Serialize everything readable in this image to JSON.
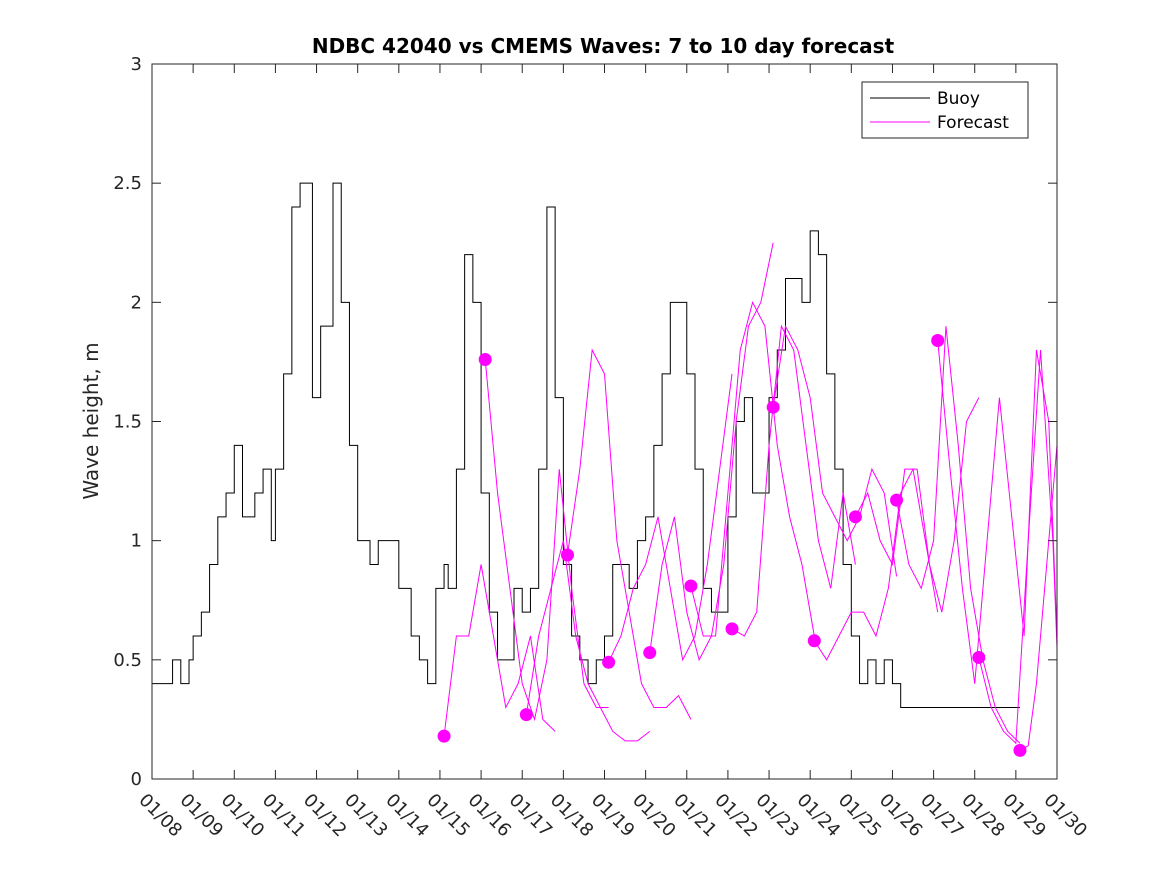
{
  "chart_data": {
    "type": "line",
    "title": "NDBC 42040 vs CMEMS Waves: 7 to 10 day forecast",
    "xlabel": "",
    "ylabel": "Wave height, m",
    "xlim": [
      0,
      22
    ],
    "ylim": [
      0,
      3
    ],
    "x_tick_labels": [
      "01/08",
      "01/09",
      "01/10",
      "01/11",
      "01/12",
      "01/13",
      "01/14",
      "01/15",
      "01/16",
      "01/17",
      "01/18",
      "01/19",
      "01/20",
      "01/21",
      "01/22",
      "01/23",
      "01/24",
      "01/25",
      "01/26",
      "01/27",
      "01/28",
      "01/29",
      "01/30"
    ],
    "y_tick_labels": [
      "0",
      "0.5",
      "1",
      "1.5",
      "2",
      "2.5",
      "3"
    ],
    "y_ticks": [
      0,
      0.5,
      1,
      1.5,
      2,
      2.5,
      3
    ],
    "grid": false,
    "legend_position": "top-right",
    "colors": {
      "buoy": "#000000",
      "forecast": "#ff00ff"
    },
    "series": [
      {
        "name": "Buoy",
        "x": [
          0,
          0.3,
          0.5,
          0.7,
          0.9,
          1.0,
          1.2,
          1.4,
          1.6,
          1.8,
          2.0,
          2.2,
          2.5,
          2.7,
          2.9,
          3.0,
          3.2,
          3.4,
          3.6,
          3.9,
          4.1,
          4.4,
          4.6,
          4.8,
          5.0,
          5.3,
          5.5,
          5.8,
          6.0,
          6.3,
          6.5,
          6.7,
          6.9,
          7.1,
          7.2,
          7.4,
          7.6,
          7.8,
          8.0,
          8.2,
          8.4,
          8.6,
          8.8,
          9.0,
          9.2,
          9.4,
          9.6,
          9.8,
          10.0,
          10.2,
          10.4,
          10.6,
          10.8,
          11.0,
          11.2,
          11.4,
          11.6,
          11.8,
          12.0,
          12.2,
          12.4,
          12.6,
          12.8,
          13.0,
          13.2,
          13.4,
          13.6,
          13.8,
          14.0,
          14.2,
          14.4,
          14.6,
          14.8,
          15.0,
          15.2,
          15.4,
          15.6,
          15.8,
          16.0,
          16.2,
          16.4,
          16.6,
          16.8,
          17.0,
          17.2,
          17.4,
          17.6,
          17.8,
          18.0,
          18.2,
          18.4,
          18.6,
          18.8,
          19.0,
          19.2,
          19.4,
          19.6,
          19.8,
          20.0,
          20.2,
          20.4,
          20.6,
          20.8,
          21.0,
          21.1
        ],
        "values": [
          0.4,
          0.4,
          0.5,
          0.4,
          0.5,
          0.6,
          0.7,
          0.9,
          1.1,
          1.2,
          1.4,
          1.1,
          1.2,
          1.3,
          1.0,
          1.3,
          1.7,
          2.4,
          2.5,
          1.6,
          1.9,
          2.5,
          2.0,
          1.4,
          1.0,
          0.9,
          1.0,
          1.0,
          0.8,
          0.6,
          0.5,
          0.4,
          0.8,
          0.9,
          0.8,
          1.3,
          2.2,
          2.0,
          1.2,
          0.7,
          0.5,
          0.5,
          0.8,
          0.7,
          0.8,
          1.3,
          2.4,
          1.6,
          0.9,
          0.6,
          0.5,
          0.4,
          0.5,
          0.6,
          0.9,
          0.9,
          0.8,
          1.0,
          1.1,
          1.4,
          1.7,
          2.0,
          2.0,
          1.7,
          1.3,
          0.8,
          0.7,
          0.7,
          1.1,
          1.5,
          1.6,
          1.2,
          1.2,
          1.6,
          1.8,
          2.1,
          2.1,
          2.0,
          2.3,
          2.2,
          1.7,
          1.3,
          0.9,
          0.6,
          0.4,
          0.5,
          0.4,
          0.5,
          0.4,
          0.3,
          0.3,
          0.3,
          0.3,
          0.3,
          0.3,
          0.3,
          0.3,
          0.3,
          0.3,
          0.3,
          0.3,
          0.3,
          0.3,
          0.3,
          0.3
        ]
      },
      {
        "name": "Forecast",
        "runs": [
          {
            "x": [
              7.1,
              7.4,
              7.7,
              8.0,
              8.3,
              8.6,
              8.9,
              9.2,
              9.5,
              9.8
            ],
            "values": [
              0.18,
              0.6,
              0.6,
              0.9,
              0.6,
              0.3,
              0.4,
              0.6,
              0.25,
              0.2
            ]
          },
          {
            "x": [
              8.1,
              8.4,
              8.7,
              9.0,
              9.3,
              9.6,
              9.9,
              10.2,
              10.5,
              10.8,
              11.1
            ],
            "values": [
              1.76,
              1.2,
              0.8,
              0.4,
              0.25,
              0.5,
              1.3,
              0.8,
              0.4,
              0.3,
              0.3
            ]
          },
          {
            "x": [
              9.1,
              9.4,
              9.7,
              10.0,
              10.3,
              10.6,
              10.9,
              11.2,
              11.5,
              11.8,
              12.1
            ],
            "values": [
              0.27,
              0.6,
              0.8,
              1.0,
              0.6,
              0.4,
              0.3,
              0.2,
              0.16,
              0.16,
              0.2
            ]
          },
          {
            "x": [
              10.1,
              10.4,
              10.7,
              11.0,
              11.3,
              11.6,
              11.9,
              12.2,
              12.5,
              12.8,
              13.1
            ],
            "values": [
              0.94,
              1.3,
              1.8,
              1.7,
              1.0,
              0.7,
              0.4,
              0.3,
              0.3,
              0.35,
              0.25
            ]
          },
          {
            "x": [
              11.1,
              11.4,
              11.7,
              12.0,
              12.3,
              12.6,
              12.9,
              13.2,
              13.5,
              13.8,
              14.1
            ],
            "values": [
              0.49,
              0.6,
              0.8,
              0.9,
              1.1,
              0.8,
              0.5,
              0.6,
              0.9,
              1.3,
              1.7
            ]
          },
          {
            "x": [
              12.1,
              12.4,
              12.7,
              13.0,
              13.3,
              13.6,
              13.9,
              14.2,
              14.5,
              14.8,
              15.1
            ],
            "values": [
              0.53,
              0.9,
              1.1,
              0.7,
              0.5,
              0.6,
              0.9,
              1.5,
              1.9,
              2.0,
              2.25
            ]
          },
          {
            "x": [
              13.1,
              13.4,
              13.7,
              14.0,
              14.3,
              14.6,
              14.9,
              15.2,
              15.5,
              15.8,
              16.1
            ],
            "values": [
              0.81,
              0.6,
              0.6,
              1.2,
              1.8,
              2.0,
              1.9,
              1.4,
              1.1,
              0.9,
              0.6
            ]
          },
          {
            "x": [
              14.1,
              14.4,
              14.7,
              15.0,
              15.3,
              15.6,
              15.9,
              16.2,
              16.5,
              16.8,
              17.1
            ],
            "values": [
              0.63,
              0.6,
              0.7,
              1.4,
              1.9,
              1.8,
              1.4,
              1.0,
              0.8,
              1.2,
              0.9
            ]
          },
          {
            "x": [
              15.1,
              15.4,
              15.7,
              16.0,
              16.3,
              16.6,
              16.9,
              17.2,
              17.5,
              17.8,
              18.1
            ],
            "values": [
              1.56,
              1.9,
              1.8,
              1.6,
              1.2,
              1.1,
              1.0,
              1.1,
              1.3,
              1.2,
              0.85
            ]
          },
          {
            "x": [
              16.1,
              16.4,
              16.7,
              17.0,
              17.3,
              17.6,
              17.9,
              18.2,
              18.5,
              18.8,
              19.1
            ],
            "values": [
              0.58,
              0.5,
              0.6,
              0.7,
              0.7,
              0.6,
              0.8,
              1.2,
              1.3,
              1.0,
              0.7
            ]
          },
          {
            "x": [
              17.1,
              17.4,
              17.7,
              18.0,
              18.3,
              18.6,
              18.9,
              19.2,
              19.5,
              19.8,
              20.1
            ],
            "values": [
              1.1,
              1.2,
              1.0,
              0.9,
              1.3,
              1.3,
              0.9,
              0.7,
              1.0,
              1.5,
              1.6
            ]
          },
          {
            "x": [
              18.1,
              18.4,
              18.7,
              19.0,
              19.3,
              19.6,
              19.9,
              20.2,
              20.5,
              20.8,
              21.1
            ],
            "values": [
              1.17,
              0.9,
              0.8,
              1.0,
              1.9,
              1.4,
              0.8,
              0.5,
              0.3,
              0.2,
              0.15
            ]
          },
          {
            "x": [
              19.1,
              19.4,
              19.7,
              20.0,
              20.3,
              20.6,
              20.9,
              21.2,
              21.5,
              21.8,
              22.0
            ],
            "values": [
              1.84,
              1.3,
              0.8,
              0.4,
              1.0,
              1.6,
              1.1,
              0.6,
              1.8,
              1.5,
              0.6
            ]
          },
          {
            "x": [
              20.1,
              20.4,
              20.7,
              21.0,
              21.3,
              21.6,
              21.9,
              22.0
            ],
            "values": [
              0.51,
              0.3,
              0.2,
              0.15,
              1.0,
              1.8,
              1.0,
              0.55
            ]
          },
          {
            "x": [
              21.1,
              21.3,
              21.5,
              21.7,
              21.9,
              22.0
            ],
            "values": [
              0.12,
              0.14,
              0.4,
              0.8,
              1.2,
              1.4
            ]
          }
        ]
      }
    ]
  }
}
